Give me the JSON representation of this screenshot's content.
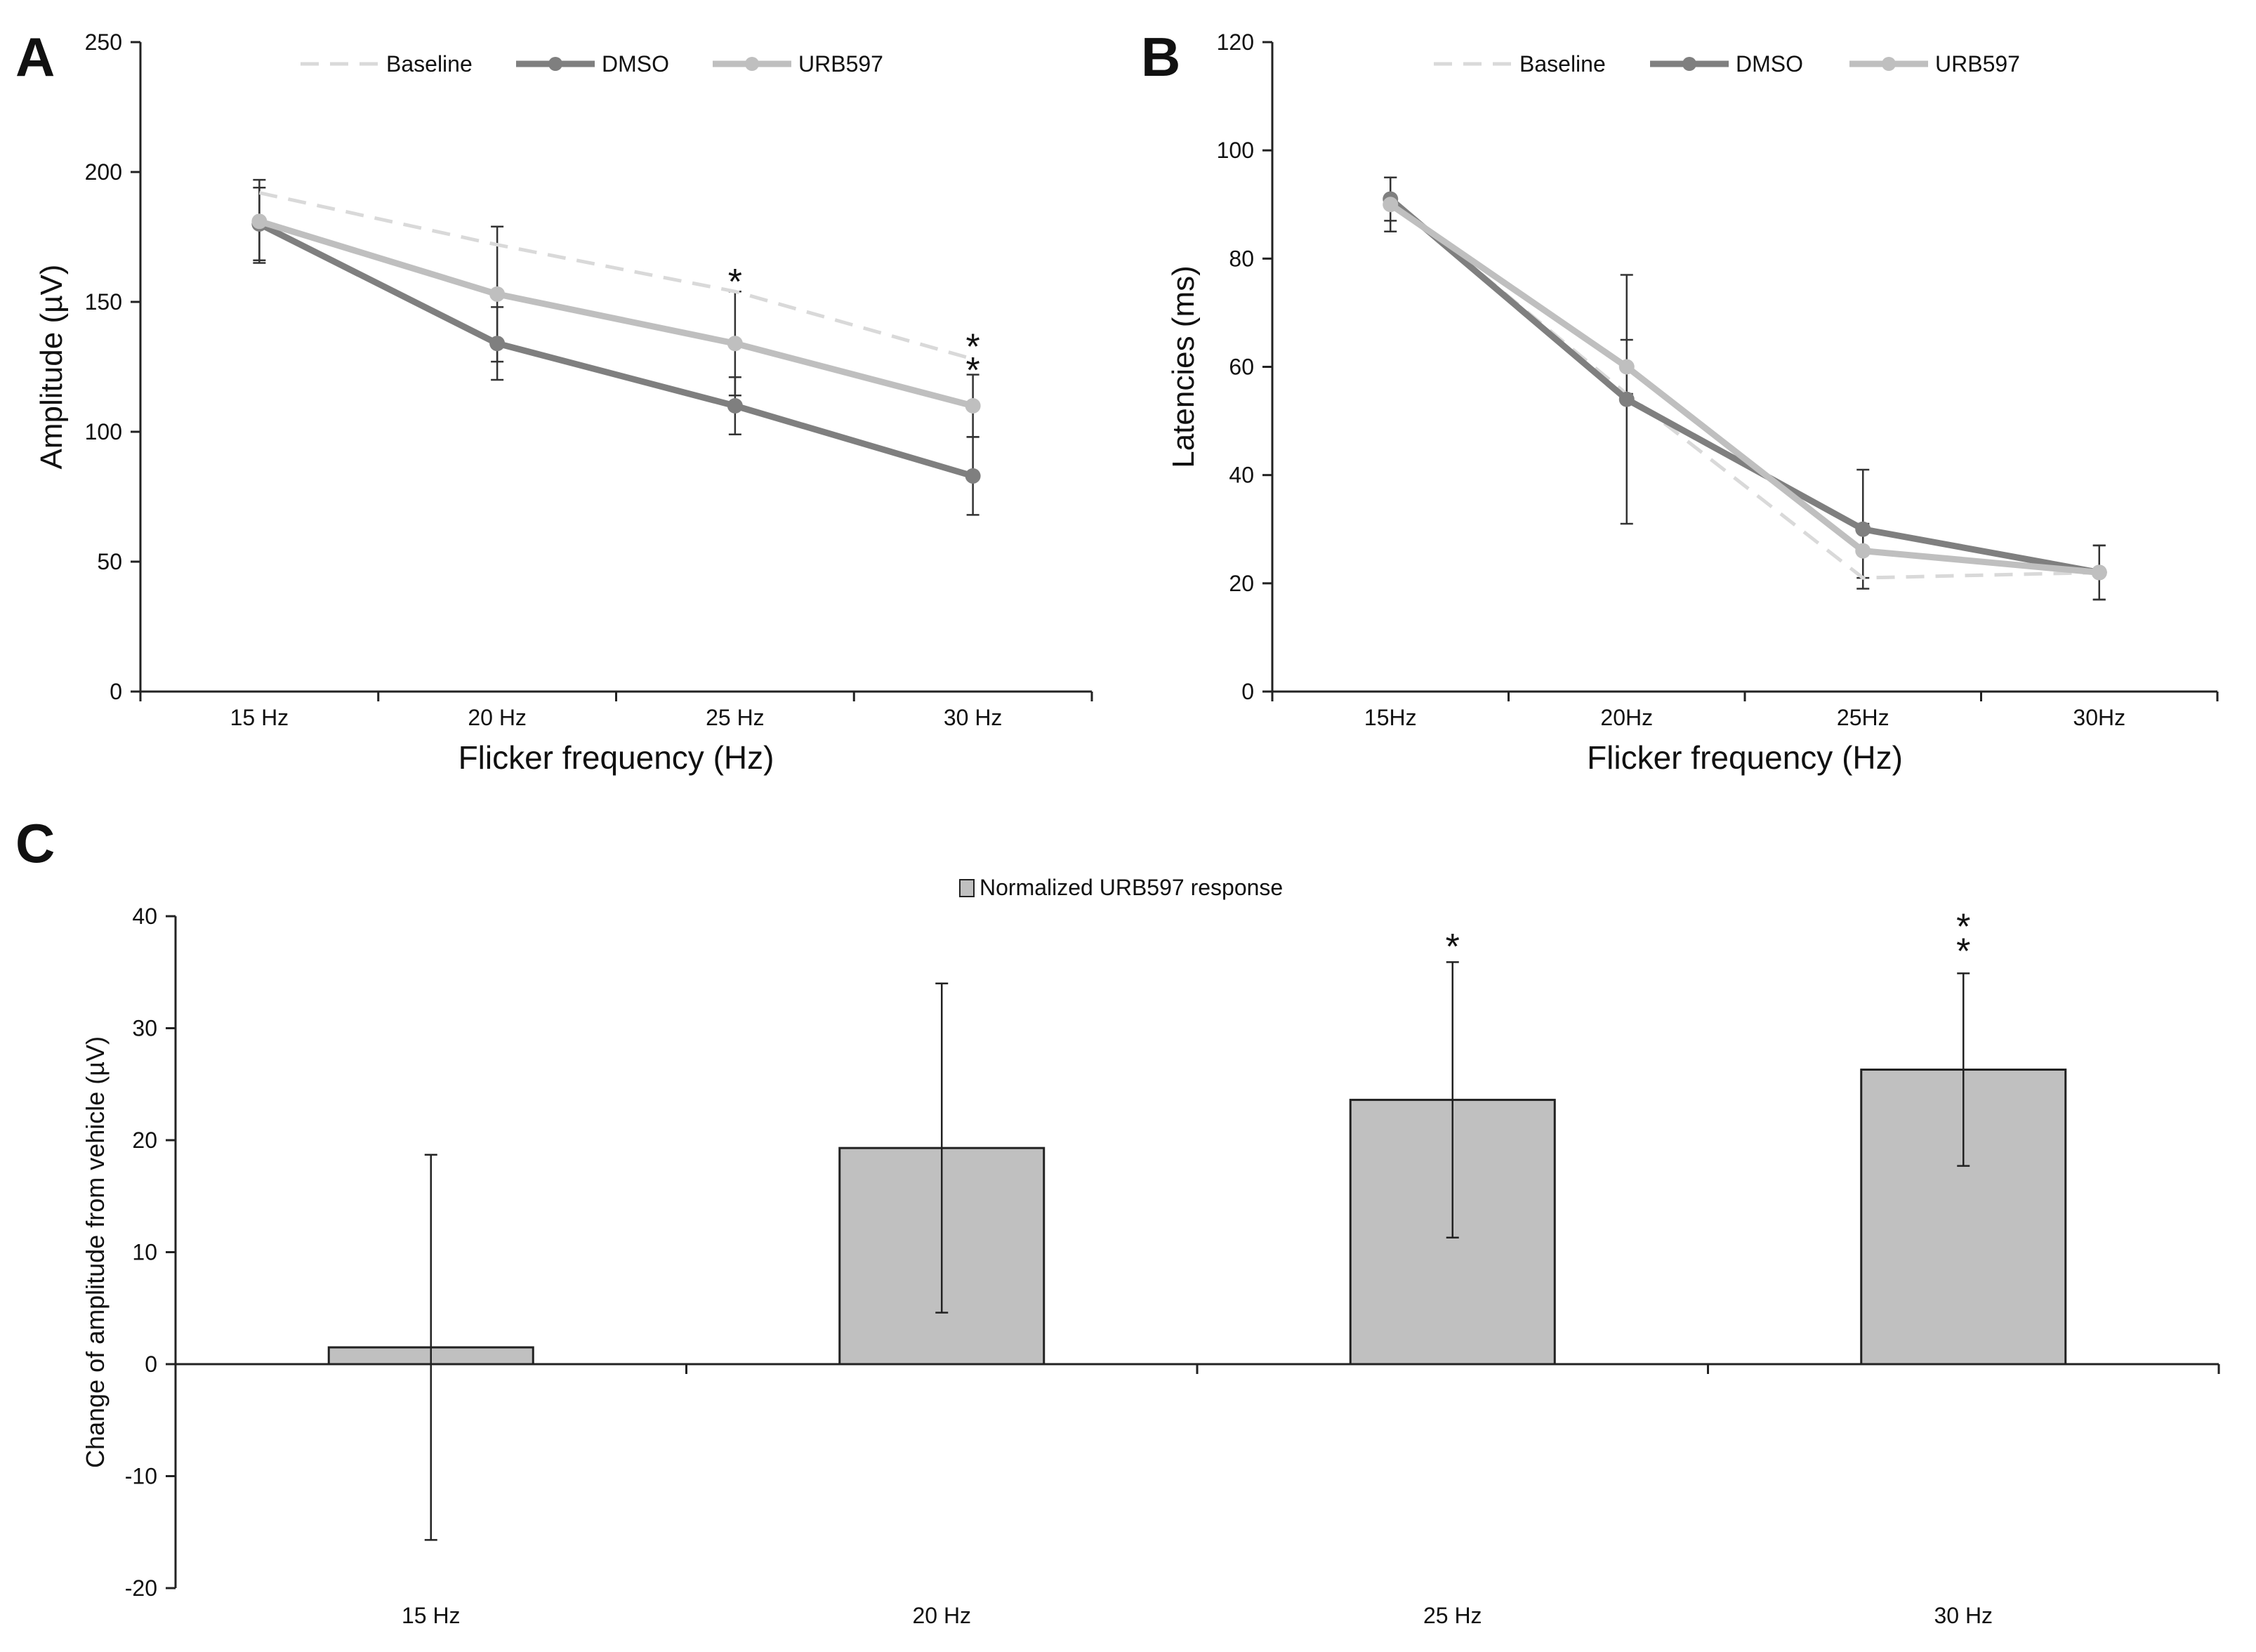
{
  "chart_data": [
    {
      "panel": "A",
      "type": "line",
      "categories": [
        "15 Hz",
        "20 Hz",
        "25 Hz",
        "30 Hz"
      ],
      "xlabel": "Flicker frequency (Hz)",
      "ylabel": "Amplitude (µV)",
      "ylim": [
        0,
        250
      ],
      "yticks": [
        0,
        50,
        100,
        150,
        200,
        250
      ],
      "legend": "top",
      "series": [
        {
          "name": "Baseline",
          "style": "dashed",
          "color": "#d9d9d9",
          "markers": false,
          "values": [
            192,
            172,
            154,
            128
          ],
          "errors": null
        },
        {
          "name": "DMSO",
          "style": "solid",
          "color": "#7f7f7f",
          "markers": true,
          "values": [
            180,
            134,
            110,
            83
          ],
          "errors": [
            14,
            14,
            11,
            15
          ]
        },
        {
          "name": "URB597",
          "style": "solid",
          "color": "#bfbfbf",
          "markers": true,
          "values": [
            181,
            153,
            134,
            110
          ],
          "errors": [
            16,
            26,
            20,
            12
          ]
        }
      ],
      "annotations": [
        {
          "category": "25 Hz",
          "text": "*",
          "y": 160
        },
        {
          "category": "30 Hz",
          "text": "*",
          "y": 135
        },
        {
          "category": "30 Hz",
          "text": "*",
          "y": 126
        }
      ]
    },
    {
      "panel": "B",
      "type": "line",
      "categories": [
        "15Hz",
        "20Hz",
        "25Hz",
        "30Hz"
      ],
      "xlabel": "Flicker frequency (Hz)",
      "ylabel": "Latencies (ms)",
      "ylim": [
        0,
        120
      ],
      "yticks": [
        0,
        20,
        40,
        60,
        80,
        100,
        120
      ],
      "legend": "top",
      "series": [
        {
          "name": "Baseline",
          "style": "dashed",
          "color": "#d9d9d9",
          "markers": false,
          "values": [
            91,
            55,
            21,
            22
          ],
          "errors": null
        },
        {
          "name": "DMSO",
          "style": "solid",
          "color": "#7f7f7f",
          "markers": true,
          "values": [
            91,
            54,
            30,
            22
          ],
          "errors": [
            4,
            23,
            11,
            5
          ]
        },
        {
          "name": "URB597",
          "style": "solid",
          "color": "#bfbfbf",
          "markers": true,
          "values": [
            90,
            60,
            26,
            22
          ],
          "errors": [
            5,
            5,
            5,
            5
          ]
        }
      ],
      "annotations": []
    },
    {
      "panel": "C",
      "type": "bar",
      "categories": [
        "15 Hz",
        "20 Hz",
        "25 Hz",
        "30 Hz"
      ],
      "xlabel": "",
      "ylabel": "Change of amplitude from vehicle (µV)",
      "ylim": [
        -20,
        40
      ],
      "yticks": [
        -20,
        -10,
        0,
        10,
        20,
        30,
        40
      ],
      "legend": "top",
      "series": [
        {
          "name": "Normalized URB597 response",
          "color": "#c0c0c0",
          "values": [
            1.5,
            19.3,
            23.6,
            26.3
          ],
          "errors": [
            17.2,
            14.7,
            12.3,
            8.6
          ]
        }
      ],
      "annotations": [
        {
          "category": "25 Hz",
          "text": "*",
          "y": 37.8
        },
        {
          "category": "30 Hz",
          "text": "*",
          "y": 39.6
        },
        {
          "category": "30 Hz",
          "text": "*",
          "y": 37.4
        }
      ]
    }
  ]
}
